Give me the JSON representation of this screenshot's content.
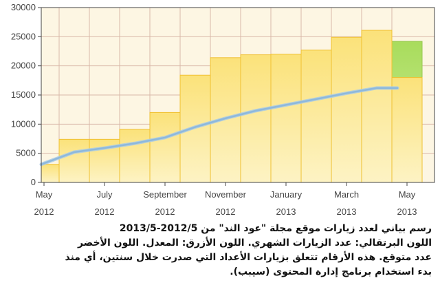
{
  "chart_data": {
    "type": "bar",
    "x_tick_labels": [
      {
        "month": "May",
        "year": "2012",
        "index": 0
      },
      {
        "month": "July",
        "year": "2012",
        "index": 2
      },
      {
        "month": "September",
        "year": "2012",
        "index": 4
      },
      {
        "month": "November",
        "year": "2012",
        "index": 6
      },
      {
        "month": "January",
        "year": "2013",
        "index": 8
      },
      {
        "month": "March",
        "year": "2013",
        "index": 10
      },
      {
        "month": "May",
        "year": "2013",
        "index": 12
      }
    ],
    "categories": [
      "May 2012",
      "Jun 2012",
      "Jul 2012",
      "Aug 2012",
      "Sep 2012",
      "Oct 2012",
      "Nov 2012",
      "Dec 2012",
      "Jan 2013",
      "Feb 2013",
      "Mar 2013",
      "Apr 2013",
      "May 2013"
    ],
    "series": [
      {
        "values": [
          3100,
          7400,
          7400,
          9100,
          12000,
          18400,
          21400,
          21900,
          22000,
          22700,
          24900,
          26100,
          18000
        ]
      },
      {
        "values": [
          3100,
          5200,
          5900,
          6700,
          7700,
          9500,
          11000,
          12300,
          13300,
          14300,
          15300,
          16200,
          16200
        ]
      },
      {
        "values": [
          null,
          null,
          null,
          null,
          null,
          null,
          null,
          null,
          null,
          null,
          null,
          null,
          24200
        ]
      }
    ],
    "ylim": [
      0,
      30000
    ],
    "y_ticks": [
      0,
      5000,
      10000,
      15000,
      20000,
      25000,
      30000
    ],
    "grid": true,
    "colors": {
      "monthly": "#f8d84a",
      "average": "#8db8dc",
      "projected": "#a8dc5c",
      "grid": "#d9b8a8",
      "frame": "#444444"
    }
  },
  "caption": {
    "lines": [
      "رسم بياني لعدد زيارات موقع مجلة \"عود الند\" من 2012/5-2013/5",
      "اللون البرتقالي: عدد الزيارات الشهري. اللون الأزرق: المعدل. اللون الأخضر",
      "عدد متوقع. هذه الأرقام تتعلق بزيارات الأعداد التي صدرت خلال سنتين، أي منذ",
      "بدء استخدام برنامج إدارة المحتوى (سيبب)."
    ]
  }
}
